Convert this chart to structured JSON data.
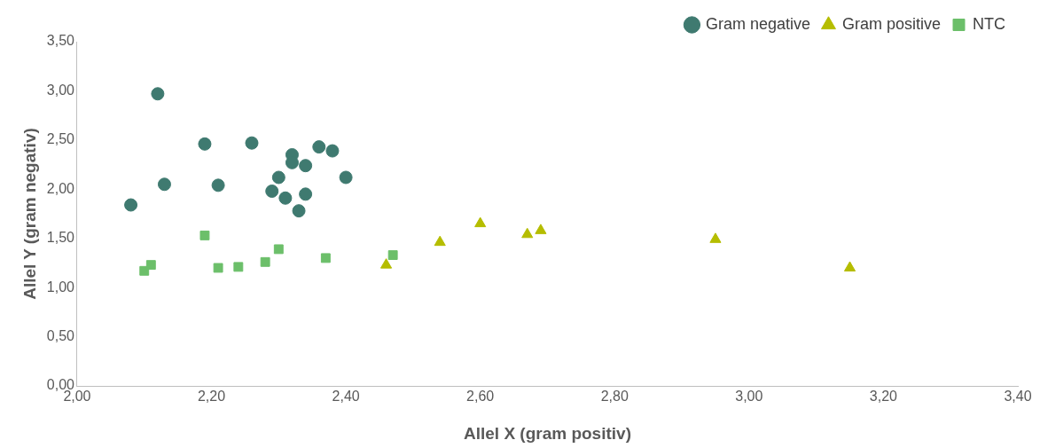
{
  "chart_data": {
    "type": "scatter",
    "xlabel": "Allel X (gram positiv)",
    "ylabel": "Allel Y (gram negativ)",
    "series": [
      {
        "name": "Gram negative",
        "color": "#3f7a70",
        "marker": "circle",
        "x": [
          2.08,
          2.12,
          2.13,
          2.19,
          2.21,
          2.26,
          2.29,
          2.3,
          2.32,
          2.31,
          2.32,
          2.33,
          2.34,
          2.34,
          2.36,
          2.38,
          2.4
        ],
        "values": [
          1.84,
          2.97,
          2.05,
          2.46,
          2.04,
          2.47,
          1.98,
          2.12,
          2.35,
          1.91,
          2.27,
          1.78,
          1.95,
          2.24,
          2.43,
          2.39,
          2.12
        ]
      },
      {
        "name": "Gram positive",
        "color": "#b5bd00",
        "marker": "triangle",
        "x": [
          2.46,
          2.54,
          2.6,
          2.67,
          2.69,
          2.95,
          3.15
        ],
        "values": [
          1.23,
          1.46,
          1.65,
          1.54,
          1.58,
          1.49,
          1.2
        ]
      },
      {
        "name": "NTC",
        "color": "#6cbf6a",
        "marker": "square",
        "x": [
          2.1,
          2.11,
          2.19,
          2.21,
          2.24,
          2.28,
          2.3,
          2.37,
          2.47
        ],
        "values": [
          1.17,
          1.23,
          1.53,
          1.2,
          1.21,
          1.26,
          1.39,
          1.3,
          1.33
        ]
      }
    ],
    "xlim": [
      2,
      3.4
    ],
    "xticks": [
      {
        "value": 2,
        "label": "2,00"
      },
      {
        "value": 2.2,
        "label": "2,20"
      },
      {
        "value": 2.4,
        "label": "2,40"
      },
      {
        "value": 2.6,
        "label": "2,60"
      },
      {
        "value": 2.8,
        "label": "2,80"
      },
      {
        "value": 3,
        "label": "3,00"
      },
      {
        "value": 3.2,
        "label": "3,20"
      },
      {
        "value": 3.4,
        "label": "3,40"
      }
    ],
    "ylim": [
      0,
      3.5
    ],
    "yticks": [
      {
        "value": 0,
        "label": "0,00"
      },
      {
        "value": 0.5,
        "label": "0,50"
      },
      {
        "value": 1,
        "label": "1,00"
      },
      {
        "value": 1.5,
        "label": "1,50"
      },
      {
        "value": 2,
        "label": "2,00"
      },
      {
        "value": 2.5,
        "label": "2,50"
      },
      {
        "value": 3,
        "label": "3,00"
      },
      {
        "value": 3.5,
        "label": "3,50"
      }
    ],
    "grid": false,
    "legend": "top right"
  }
}
